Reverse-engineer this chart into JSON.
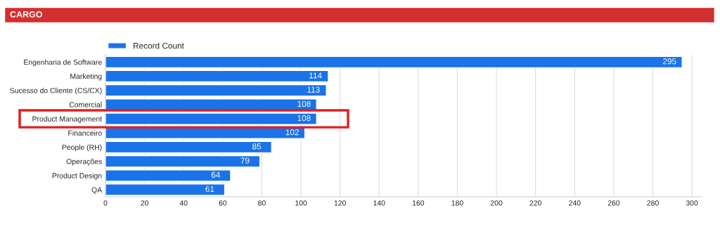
{
  "chart_data": {
    "type": "bar",
    "title": "CARGO",
    "orientation": "horizontal",
    "categories": [
      "Engenharia de Software",
      "Marketing",
      "Sucesso do Cliente (CS/CX)",
      "Comercial",
      "Product Management",
      "Financeiro",
      "People (RH)",
      "Operações",
      "Product Design",
      "QA"
    ],
    "series": [
      {
        "name": "Record Count",
        "color": "#1a73e8",
        "values": [
          295,
          114,
          113,
          108,
          108,
          102,
          85,
          79,
          64,
          61
        ]
      }
    ],
    "xlim": [
      0,
      305
    ],
    "xticks": [
      0,
      20,
      40,
      60,
      80,
      100,
      120,
      140,
      160,
      180,
      200,
      220,
      240,
      260,
      280,
      300
    ],
    "grid": "x",
    "legend": "top left",
    "data_labels": true
  }
}
